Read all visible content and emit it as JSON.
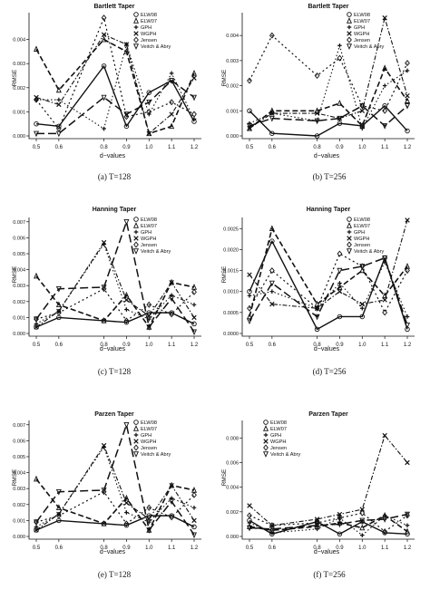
{
  "colors": {
    "ink": "#111111",
    "background": "#ffffff"
  },
  "legend_labels": [
    "ELW08",
    "ELW07",
    "GPH",
    "WGPH",
    "Jensen",
    "Veitch & Abry"
  ],
  "panels": [
    {
      "id": "a",
      "caption": "(a)  T=128",
      "title": "Bartlett Taper",
      "chart_data": {
        "type": "line",
        "title": "Bartlett Taper",
        "xlabel": "",
        "ylabel": "RMSE",
        "x": [
          0.5,
          0.6,
          0.8,
          0.9,
          1.0,
          1.1,
          1.2
        ],
        "xtick_labels": [
          "0.5",
          "0.6",
          "0.8",
          "0.9",
          "1.0",
          "1.1",
          "1.2"
        ],
        "ylim": [
          0,
          0.005
        ],
        "yticks": [
          "0.000",
          "0.001",
          "0.002",
          "0.003",
          "0.004"
        ],
        "legend_position": "top-right",
        "series": [
          {
            "name": "ELW08",
            "values": [
              0.0005,
              0.0004,
              0.0029,
              0.0004,
              0.0018,
              0.0023,
              0.0006
            ]
          },
          {
            "name": "ELW07",
            "values": [
              0.0036,
              0.0019,
              0.004,
              0.0035,
              0.0001,
              0.0004,
              0.0026
            ]
          },
          {
            "name": "GPH",
            "values": [
              0.0015,
              0.0015,
              0.0003,
              0.0038,
              0.0009,
              0.0026,
              0.0007
            ]
          },
          {
            "name": "WGPH",
            "values": [
              0.0016,
              0.0013,
              0.0042,
              0.0038,
              0.0001,
              0.0009,
              0.0024
            ]
          },
          {
            "name": "Jensen",
            "values": [
              0.0015,
              0.0003,
              0.0049,
              0.0008,
              0.001,
              0.0014,
              0.0009
            ]
          },
          {
            "name": "Veitch & Abry",
            "values": [
              0.0001,
              0.0001,
              0.0016,
              0.0009,
              0.0014,
              0.0023,
              0.0016
            ]
          }
        ]
      }
    },
    {
      "id": "b",
      "caption": "(b)  T=256",
      "title": "Bartlett Taper",
      "chart_data": {
        "type": "line",
        "title": "Bartlett Taper",
        "xlabel": "",
        "ylabel": "RMSE",
        "x": [
          0.5,
          0.6,
          0.8,
          0.9,
          1.0,
          1.1,
          1.2
        ],
        "xtick_labels": [
          "0.5",
          "0.6",
          "0.8",
          "0.9",
          "1.0",
          "1.1",
          "1.2"
        ],
        "ylim": [
          0,
          0.0048
        ],
        "yticks": [
          "0.000",
          "0.001",
          "0.002",
          "0.003",
          "0.004"
        ],
        "legend_position": "top-right",
        "series": [
          {
            "name": "ELW08",
            "values": [
              0.001,
              0.0001,
              0.0,
              0.0005,
              0.0004,
              0.0012,
              0.0002
            ]
          },
          {
            "name": "ELW07",
            "values": [
              0.0003,
              0.001,
              0.001,
              0.0013,
              0.0004,
              0.0027,
              0.0014
            ]
          },
          {
            "name": "GPH",
            "values": [
              0.0005,
              0.0009,
              0.0006,
              0.0036,
              0.0003,
              0.002,
              0.0026
            ]
          },
          {
            "name": "WGPH",
            "values": [
              0.0003,
              0.0009,
              0.0009,
              0.0007,
              0.001,
              0.0047,
              0.0016
            ]
          },
          {
            "name": "Jensen",
            "values": [
              0.0022,
              0.004,
              0.0024,
              0.0031,
              0.0012,
              0.001,
              0.0029
            ]
          },
          {
            "name": "Veitch & Abry",
            "values": [
              0.0004,
              0.0007,
              0.0006,
              0.0007,
              0.0012,
              0.0004,
              0.0012
            ]
          }
        ]
      }
    },
    {
      "id": "c",
      "caption": "(c)  T=128",
      "title": "Hanning Taper",
      "chart_data": {
        "type": "line",
        "title": "Hanning Taper",
        "xlabel": "",
        "ylabel": "RMSE",
        "x": [
          0.5,
          0.6,
          0.8,
          0.9,
          1.0,
          1.1,
          1.2
        ],
        "xtick_labels": [
          "0.5",
          "0.6",
          "0.8",
          "0.9",
          "1.0",
          "1.1",
          "1.2"
        ],
        "ylim": [
          0,
          0.0071
        ],
        "yticks": [
          "0.000",
          "0.001",
          "0.002",
          "0.003",
          "0.004",
          "0.005",
          "0.006",
          "0.007"
        ],
        "legend_position": "top-right",
        "series": [
          {
            "name": "ELW08",
            "values": [
              0.0004,
              0.001,
              0.0008,
              0.0007,
              0.0013,
              0.0013,
              0.0006
            ]
          },
          {
            "name": "ELW07",
            "values": [
              0.0036,
              0.0018,
              0.0008,
              0.0024,
              0.0004,
              0.0032,
              0.0029
            ]
          },
          {
            "name": "GPH",
            "values": [
              0.0006,
              0.0014,
              0.0056,
              0.0015,
              0.0009,
              0.0024,
              0.0018
            ]
          },
          {
            "name": "WGPH",
            "values": [
              0.0004,
              0.0014,
              0.0057,
              0.0021,
              0.0011,
              0.0032,
              0.001
            ]
          },
          {
            "name": "Jensen",
            "values": [
              0.0009,
              0.0013,
              0.0028,
              0.0008,
              0.0018,
              0.0012,
              0.0026
            ]
          },
          {
            "name": "Veitch & Abry",
            "values": [
              0.0009,
              0.0028,
              0.0029,
              0.007,
              0.0004,
              0.0022,
              0.0001
            ]
          }
        ]
      }
    },
    {
      "id": "d",
      "caption": "(d)  T=256",
      "title": "Hanning Taper",
      "chart_data": {
        "type": "line",
        "title": "Hanning Taper",
        "xlabel": "",
        "ylabel": "RMSE",
        "x": [
          0.5,
          0.6,
          0.8,
          0.9,
          1.0,
          1.1,
          1.2
        ],
        "xtick_labels": [
          "0.5",
          "0.6",
          "0.8",
          "0.9",
          "1.0",
          "1.1",
          "1.2"
        ],
        "ylim": [
          0,
          0.0027
        ],
        "yticks": [
          "0.0000",
          "0.0005",
          "0.0010",
          "0.0015",
          "0.0020",
          "0.0025"
        ],
        "legend_position": "top-right",
        "series": [
          {
            "name": "ELW08",
            "values": [
              0.001,
              0.0022,
              0.0001,
              0.0004,
              0.0004,
              0.0018,
              0.0001
            ]
          },
          {
            "name": "ELW07",
            "values": [
              0.0004,
              0.0025,
              0.0007,
              0.0011,
              0.0015,
              0.0009,
              0.0016
            ]
          },
          {
            "name": "GPH",
            "values": [
              0.0009,
              0.001,
              0.0006,
              0.0012,
              0.0006,
              0.0017,
              0.0004
            ]
          },
          {
            "name": "WGPH",
            "values": [
              0.0014,
              0.0007,
              0.0006,
              0.001,
              0.0007,
              0.0008,
              0.0027
            ]
          },
          {
            "name": "Jensen",
            "values": [
              0.0006,
              0.0015,
              0.0006,
              0.0019,
              0.0016,
              0.0005,
              0.0015
            ]
          },
          {
            "name": "Veitch & Abry",
            "values": [
              0.0003,
              0.0012,
              0.0004,
              0.0015,
              0.0016,
              0.0018,
              0.0002
            ]
          }
        ]
      }
    },
    {
      "id": "e",
      "caption": "(e)  T=128",
      "title": "Parzen Taper",
      "chart_data": {
        "type": "line",
        "title": "Parzen Taper",
        "xlabel": "",
        "ylabel": "RMSE",
        "x": [
          0.5,
          0.6,
          0.8,
          0.9,
          1.0,
          1.1,
          1.2
        ],
        "xtick_labels": [
          "0.5",
          "0.6",
          "0.8",
          "0.9",
          "1.0",
          "1.1",
          "1.2"
        ],
        "ylim": [
          0,
          0.0071
        ],
        "yticks": [
          "0.000",
          "0.001",
          "0.002",
          "0.003",
          "0.004",
          "0.005",
          "0.006",
          "0.007"
        ],
        "legend_position": "top-right",
        "series": [
          {
            "name": "ELW08",
            "values": [
              0.0004,
              0.001,
              0.0008,
              0.0007,
              0.0013,
              0.0013,
              0.0006
            ]
          },
          {
            "name": "ELW07",
            "values": [
              0.0036,
              0.0018,
              0.0008,
              0.0024,
              0.0004,
              0.0032,
              0.0029
            ]
          },
          {
            "name": "GPH",
            "values": [
              0.0006,
              0.0014,
              0.0056,
              0.0015,
              0.0009,
              0.0024,
              0.0018
            ]
          },
          {
            "name": "WGPH",
            "values": [
              0.0004,
              0.0014,
              0.0057,
              0.0021,
              0.0011,
              0.0032,
              0.001
            ]
          },
          {
            "name": "Jensen",
            "values": [
              0.0009,
              0.0013,
              0.0028,
              0.0008,
              0.0018,
              0.0012,
              0.0026
            ]
          },
          {
            "name": "Veitch & Abry",
            "values": [
              0.0009,
              0.0028,
              0.0029,
              0.007,
              0.0004,
              0.0022,
              0.0001
            ]
          }
        ]
      }
    },
    {
      "id": "f",
      "caption": "(f)  T=256",
      "title": "Parzen Taper",
      "chart_data": {
        "type": "line",
        "title": "Parzen Taper",
        "xlabel": "d−values",
        "ylabel": "RMSE",
        "x": [
          0.5,
          0.6,
          0.8,
          0.9,
          1.0,
          1.1,
          1.2
        ],
        "xtick_labels": [
          "0.5",
          "0.6",
          "0.8",
          "0.9",
          "1.0",
          "1.1",
          "1.2"
        ],
        "ylim": [
          0,
          0.0092
        ],
        "yticks": [
          "0.000",
          "0.002",
          "0.004",
          "0.006",
          "0.008"
        ],
        "legend_position": "top-left",
        "series": [
          {
            "name": "ELW08",
            "values": [
              0.0013,
              0.0002,
              0.0012,
              0.0002,
              0.0012,
              0.0003,
              0.0002
            ]
          },
          {
            "name": "ELW07",
            "values": [
              0.0008,
              0.0005,
              0.0008,
              0.0011,
              0.0007,
              0.0017,
              0.0004
            ]
          },
          {
            "name": "GPH",
            "values": [
              0.0011,
              0.0003,
              0.0006,
              0.0015,
              0.0001,
              0.0017,
              0.0009
            ]
          },
          {
            "name": "WGPH",
            "values": [
              0.0025,
              0.0009,
              0.0014,
              0.0018,
              0.0022,
              0.0082,
              0.006
            ]
          },
          {
            "name": "Jensen",
            "values": [
              0.0017,
              0.0009,
              0.0011,
              0.0015,
              0.0019,
              0.0004,
              0.0017
            ]
          },
          {
            "name": "Veitch & Abry",
            "values": [
              0.0007,
              0.0006,
              0.0009,
              0.001,
              0.0013,
              0.0014,
              0.0018
            ]
          }
        ]
      }
    }
  ],
  "row_xlabels": [
    "d−values",
    "d−values",
    "d−values",
    "d−values",
    "d−values"
  ]
}
